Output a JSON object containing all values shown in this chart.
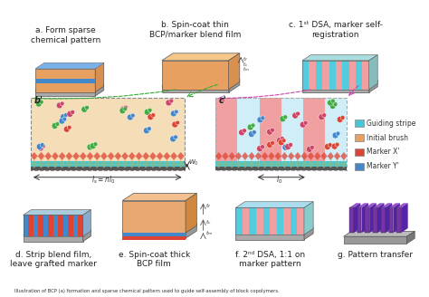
{
  "title_a": "a. Form sparse\nchemical pattern",
  "title_b": "b. Spin-coat thin\nBCP/marker blend film",
  "title_c": "c. 1ˢᵗ DSA, marker self-\nregistration",
  "title_d": "d. Strip blend film,\nleave grafted marker",
  "title_e": "e. Spin-coat thick\nBCP film",
  "title_f": "f. 2ⁿᵈ DSA, 1:1 on\nmarker pattern",
  "title_g": "g. Pattern transfer",
  "orange": "#e8a060",
  "light_orange": "#f5c88a",
  "med_orange": "#d89050",
  "blue": "#4488cc",
  "light_blue": "#7ab0e8",
  "cyan": "#55ccdd",
  "teal": "#44c8d8",
  "red": "#dd4433",
  "pink": "#f0a0a0",
  "light_pink": "#f8c8c8",
  "purple_dark": "#5522aa",
  "purple_mid": "#7733aa",
  "purple_light": "#9955cc",
  "gray_light": "#cccccc",
  "gray_mid": "#aaaaaa",
  "gray_dark": "#888888",
  "gray_base": "#999999",
  "dark_gray": "#555555",
  "green": "#44aa44",
  "bg": "#ffffff",
  "text_color": "#222222",
  "caption": "Illustration of BCP (a) formation and sparse chemical pattern used to guide self-assembly of block copolymers."
}
